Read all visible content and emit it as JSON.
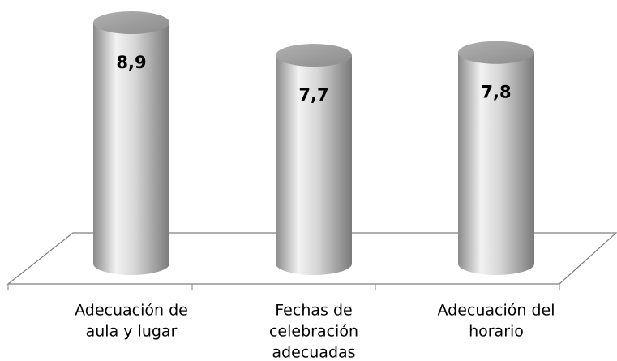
{
  "chart_data": {
    "type": "bar3d",
    "categories": [
      [
        "Adecuación de",
        "aula y lugar"
      ],
      [
        "Fechas de",
        "celebración",
        "adecuadas"
      ],
      [
        "Adecuación del",
        "horario"
      ]
    ],
    "values": [
      8.9,
      7.7,
      7.8
    ],
    "value_labels": [
      "8,9",
      "7,7",
      "7,8"
    ]
  }
}
